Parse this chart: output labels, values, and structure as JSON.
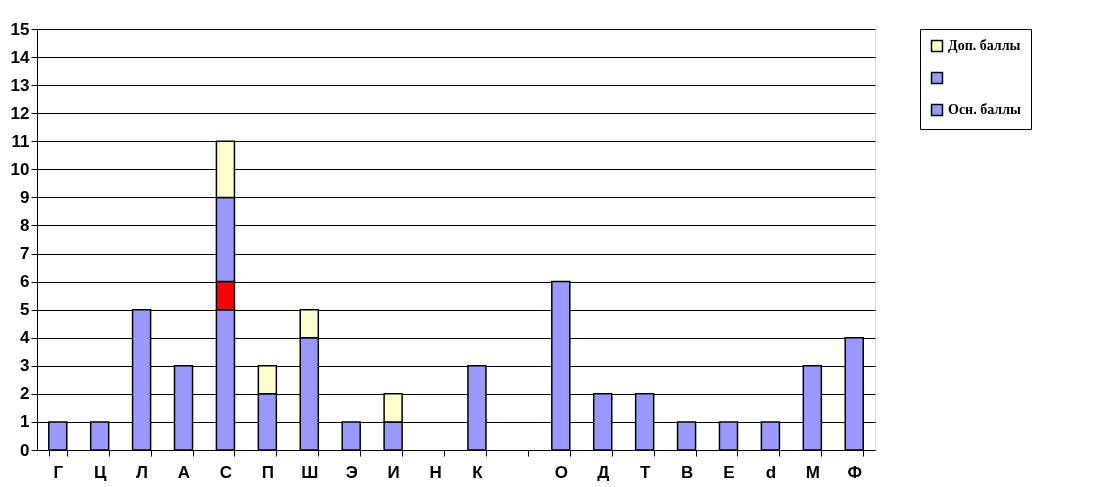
{
  "chart_data": {
    "type": "bar",
    "stacked": true,
    "categories": [
      "Г",
      "Ц",
      "Л",
      "А",
      "С",
      "П",
      "Ш",
      "Э",
      "И",
      "Н",
      "К",
      null,
      "О",
      "Д",
      "Т",
      "В",
      "Е",
      "d",
      "М",
      "Ф"
    ],
    "series": [
      {
        "name": "Осн. баллы",
        "color": "#9999ff",
        "values": [
          1,
          1,
          5,
          3,
          5,
          2,
          4,
          1,
          1,
          null,
          3,
          null,
          6,
          2,
          2,
          1,
          1,
          1,
          3,
          4
        ]
      },
      {
        "color": "#ff0000",
        "values": [
          null,
          null,
          null,
          null,
          1,
          null,
          null,
          null,
          null,
          null,
          null,
          null,
          null,
          null,
          null,
          null,
          null,
          null,
          null,
          null
        ]
      },
      {
        "color": "#9999ff",
        "values": [
          null,
          null,
          null,
          null,
          3,
          null,
          null,
          null,
          null,
          null,
          null,
          null,
          null,
          null,
          null,
          null,
          null,
          null,
          null,
          null
        ]
      },
      {
        "name": "Доп. баллы",
        "color": "#ffffcc",
        "values": [
          null,
          null,
          null,
          null,
          2,
          1,
          1,
          null,
          1,
          null,
          null,
          null,
          null,
          null,
          null,
          null,
          null,
          null,
          null,
          null
        ]
      }
    ],
    "ylim": [
      0,
      15
    ],
    "yticks": [
      0,
      1,
      2,
      3,
      4,
      5,
      6,
      7,
      8,
      9,
      10,
      11,
      12,
      13,
      14,
      15
    ],
    "grid": "y",
    "legend": "right"
  }
}
